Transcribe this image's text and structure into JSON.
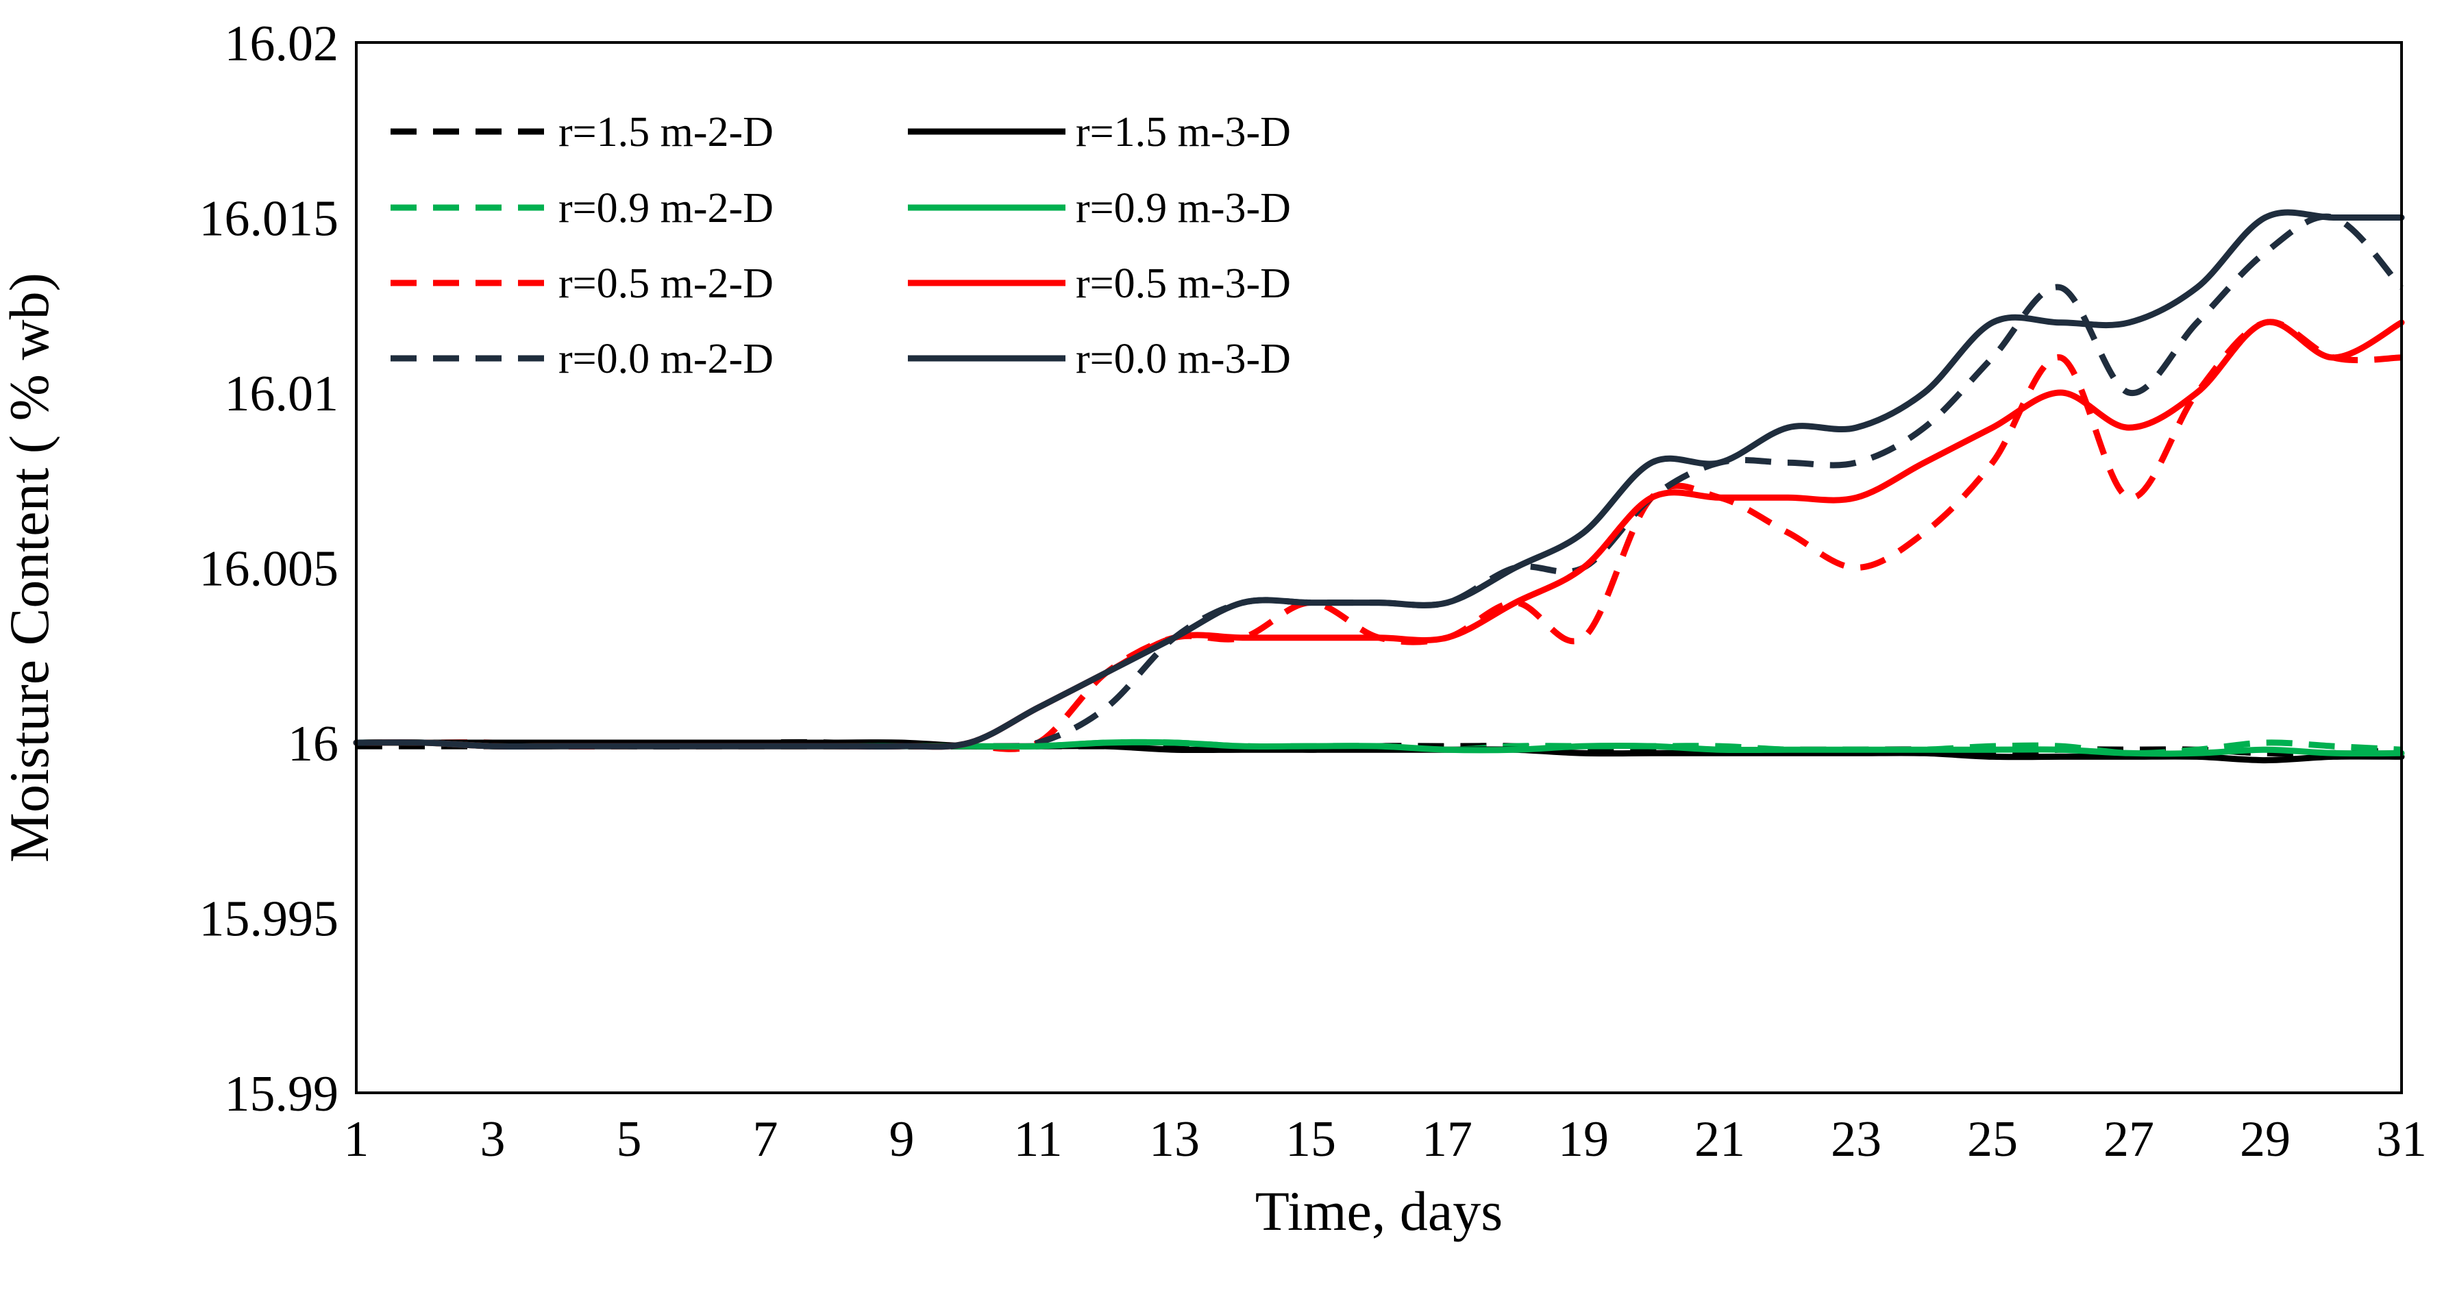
{
  "chart_data": {
    "type": "line",
    "title": "",
    "xlabel": "Time, days",
    "ylabel": "Moisture Content ( % wb)",
    "xlim": [
      1,
      31
    ],
    "ylim": [
      15.99,
      16.02
    ],
    "xticks": [
      1,
      3,
      5,
      7,
      9,
      11,
      13,
      15,
      17,
      19,
      21,
      23,
      25,
      27,
      29,
      31
    ],
    "yticks": [
      15.99,
      15.995,
      16,
      16.005,
      16.01,
      16.015,
      16.02
    ],
    "ytick_labels": [
      "15.99",
      "15.995",
      "16",
      "16.005",
      "16.01",
      "16.015",
      "16.02"
    ],
    "legend_position": "top-left",
    "series": [
      {
        "name": "r=1.5 m-2-D",
        "color": "#000000",
        "dash": true,
        "x": [
          1,
          2,
          3,
          4,
          5,
          6,
          7,
          8,
          9,
          10,
          11,
          12,
          13,
          14,
          15,
          16,
          17,
          18,
          19,
          20,
          21,
          22,
          23,
          24,
          25,
          26,
          27,
          28,
          29,
          30,
          31
        ],
        "y": [
          15.9999,
          15.9999,
          15.9999,
          15.9999,
          15.9999,
          15.9999,
          16.0,
          16.0,
          15.9999,
          15.9999,
          15.9999,
          15.9999,
          15.9999,
          15.9999,
          15.9998,
          15.9999,
          15.9999,
          15.9999,
          15.9998,
          15.9998,
          15.9998,
          15.9998,
          15.9998,
          15.9998,
          15.9997,
          15.9998,
          15.9998,
          15.9998,
          15.9997,
          15.9997,
          15.9998
        ]
      },
      {
        "name": "r=0.9 m-2-D",
        "color": "#00B050",
        "dash": true,
        "x": [
          1,
          2,
          3,
          4,
          5,
          6,
          7,
          8,
          9,
          10,
          11,
          12,
          13,
          14,
          15,
          16,
          17,
          18,
          19,
          20,
          21,
          22,
          23,
          24,
          25,
          26,
          27,
          28,
          29,
          30,
          31
        ],
        "y": [
          16.0,
          16.0,
          15.9999,
          15.9999,
          15.9999,
          15.9999,
          15.9999,
          15.9999,
          15.9999,
          15.9999,
          15.9999,
          16.0,
          16.0,
          15.9999,
          15.9999,
          15.9999,
          15.9998,
          15.9999,
          15.9999,
          15.9999,
          15.9999,
          15.9998,
          15.9998,
          15.9998,
          15.9999,
          15.9999,
          15.9997,
          15.9998,
          16.0,
          15.9999,
          15.9998
        ]
      },
      {
        "name": "r=0.5 m-2-D",
        "color": "#FF0000",
        "dash": true,
        "x": [
          1,
          2,
          3,
          4,
          5,
          6,
          7,
          8,
          9,
          10,
          11,
          12,
          13,
          14,
          15,
          16,
          17,
          18,
          19,
          20,
          21,
          22,
          23,
          24,
          25,
          26,
          27,
          28,
          29,
          30,
          31
        ],
        "y": [
          16.0,
          16.0,
          16.0,
          15.9999,
          15.9999,
          15.9999,
          15.9999,
          15.9999,
          15.9999,
          15.9999,
          16.0,
          16.002,
          16.003,
          16.003,
          16.004,
          16.003,
          16.003,
          16.004,
          16.003,
          16.007,
          16.007,
          16.006,
          16.005,
          16.006,
          16.008,
          16.011,
          16.007,
          16.01,
          16.012,
          16.011,
          16.011
        ]
      },
      {
        "name": "r=0.0 m-2-D",
        "color": "#1F2D3D",
        "dash": true,
        "x": [
          1,
          2,
          3,
          4,
          5,
          6,
          7,
          8,
          9,
          10,
          11,
          12,
          13,
          14,
          15,
          16,
          17,
          18,
          19,
          20,
          21,
          22,
          23,
          24,
          25,
          26,
          27,
          28,
          29,
          30,
          31
        ],
        "y": [
          16.0,
          16.0,
          15.9999,
          16.0,
          15.9999,
          15.9999,
          15.9999,
          15.9999,
          15.9999,
          15.9999,
          16.0,
          16.001,
          16.003,
          16.004,
          16.004,
          16.004,
          16.004,
          16.005,
          16.005,
          16.007,
          16.008,
          16.008,
          16.008,
          16.009,
          16.011,
          16.013,
          16.01,
          16.012,
          16.014,
          16.015,
          16.013
        ]
      },
      {
        "name": "r=1.5 m-3-D",
        "color": "#000000",
        "dash": false,
        "x": [
          1,
          2,
          3,
          4,
          5,
          6,
          7,
          8,
          9,
          10,
          11,
          12,
          13,
          14,
          15,
          16,
          17,
          18,
          19,
          20,
          21,
          22,
          23,
          24,
          25,
          26,
          27,
          28,
          29,
          30,
          31
        ],
        "y": [
          16.0,
          16.0,
          16.0,
          16.0,
          16.0,
          16.0,
          16.0,
          16.0,
          16.0,
          15.9999,
          15.9999,
          15.9999,
          15.9998,
          15.9998,
          15.9998,
          15.9998,
          15.9998,
          15.9998,
          15.9997,
          15.9997,
          15.9997,
          15.9997,
          15.9997,
          15.9997,
          15.9996,
          15.9996,
          15.9996,
          15.9996,
          15.9995,
          15.9996,
          15.9996
        ]
      },
      {
        "name": "r=0.9 m-3-D",
        "color": "#00B050",
        "dash": false,
        "x": [
          1,
          2,
          3,
          4,
          5,
          6,
          7,
          8,
          9,
          10,
          11,
          12,
          13,
          14,
          15,
          16,
          17,
          18,
          19,
          20,
          21,
          22,
          23,
          24,
          25,
          26,
          27,
          28,
          29,
          30,
          31
        ],
        "y": [
          16.0,
          16.0,
          15.9999,
          15.9999,
          15.9999,
          15.9999,
          15.9999,
          15.9999,
          15.9999,
          15.9999,
          15.9999,
          16.0,
          16.0,
          15.9999,
          15.9999,
          15.9999,
          15.9998,
          15.9998,
          15.9999,
          15.9999,
          15.9998,
          15.9998,
          15.9998,
          15.9998,
          15.9998,
          15.9998,
          15.9997,
          15.9997,
          15.9998,
          15.9997,
          15.9997
        ]
      },
      {
        "name": "r=0.5 m-3-D",
        "color": "#FF0000",
        "dash": false,
        "x": [
          1,
          2,
          3,
          4,
          5,
          6,
          7,
          8,
          9,
          10,
          11,
          12,
          13,
          14,
          15,
          16,
          17,
          18,
          19,
          20,
          21,
          22,
          23,
          24,
          25,
          26,
          27,
          28,
          29,
          30,
          31
        ],
        "y": [
          16.0,
          16.0,
          15.9999,
          15.9999,
          15.9999,
          15.9999,
          15.9999,
          15.9999,
          15.9999,
          16.0,
          16.001,
          16.002,
          16.003,
          16.003,
          16.003,
          16.003,
          16.003,
          16.004,
          16.005,
          16.007,
          16.007,
          16.007,
          16.007,
          16.008,
          16.009,
          16.01,
          16.009,
          16.01,
          16.012,
          16.011,
          16.012
        ]
      },
      {
        "name": "r=0.0 m-3-D",
        "color": "#1F2D3D",
        "dash": false,
        "x": [
          1,
          2,
          3,
          4,
          5,
          6,
          7,
          8,
          9,
          10,
          11,
          12,
          13,
          14,
          15,
          16,
          17,
          18,
          19,
          20,
          21,
          22,
          23,
          24,
          25,
          26,
          27,
          28,
          29,
          30,
          31
        ],
        "y": [
          16.0,
          16.0,
          15.9999,
          15.9999,
          15.9999,
          15.9999,
          15.9999,
          15.9999,
          15.9999,
          16.0,
          16.001,
          16.002,
          16.003,
          16.004,
          16.004,
          16.004,
          16.004,
          16.005,
          16.006,
          16.008,
          16.008,
          16.009,
          16.009,
          16.01,
          16.012,
          16.012,
          16.012,
          16.013,
          16.015,
          16.015,
          16.015
        ]
      }
    ]
  }
}
